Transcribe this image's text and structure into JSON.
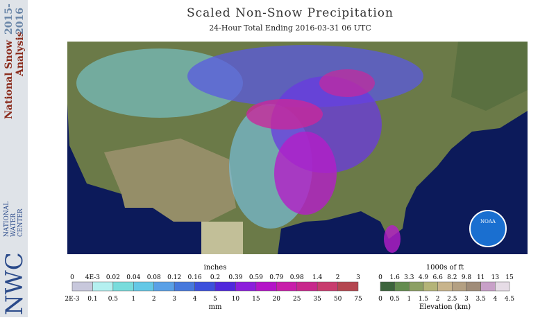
{
  "header": {
    "title": "Scaled Non-Snow Precipitation",
    "subtitle": "24-Hour Total Ending 2016-03-31 06 UTC"
  },
  "sidebar": {
    "line1": "National Snow",
    "years1": "2015-",
    "line2": "Analysis",
    "years2": "2016",
    "agency": [
      "NATIONAL",
      "WATER",
      "CENTER"
    ],
    "logo": "NWC"
  },
  "map": {
    "logo": "NOAA"
  },
  "precip_legend": {
    "unit_top": "inches",
    "top_labels": [
      "0",
      "4E-3",
      "0.02",
      "0.04",
      "0.08",
      "0.12",
      "0.16",
      "0.2",
      "0.39",
      "0.59",
      "0.79",
      "0.98",
      "1.4",
      "2",
      "3"
    ],
    "bottom_labels": [
      "2E-3",
      "0.1",
      "0.5",
      "1",
      "2",
      "3",
      "4",
      "5",
      "10",
      "15",
      "20",
      "25",
      "35",
      "50",
      "75"
    ],
    "unit_bottom": "mm",
    "colors": [
      "#c8c8dc",
      "#b4f0f0",
      "#78dcdc",
      "#64c8e6",
      "#5aa0e6",
      "#4678dc",
      "#3c50dc",
      "#5028dc",
      "#8c1edc",
      "#b414c8",
      "#c81eaa",
      "#c8288c",
      "#c83c6e",
      "#b44650"
    ]
  },
  "elevation_legend": {
    "unit_top": "1000s of ft",
    "top_labels": [
      "0",
      "1.6",
      "3.3",
      "4.9",
      "6.6",
      "8.2",
      "9.8",
      "11",
      "13",
      "15"
    ],
    "bottom_labels": [
      "0",
      "0.5",
      "1",
      "1.5",
      "2",
      "2.5",
      "3",
      "3.5",
      "4",
      "4.5"
    ],
    "unit_bottom": "Elevation (km)",
    "colors": [
      "#3c643c",
      "#648c50",
      "#8ca064",
      "#b4b478",
      "#c8b48c",
      "#b4a082",
      "#a08c78",
      "#c8a0c8",
      "#e6dce6"
    ]
  }
}
